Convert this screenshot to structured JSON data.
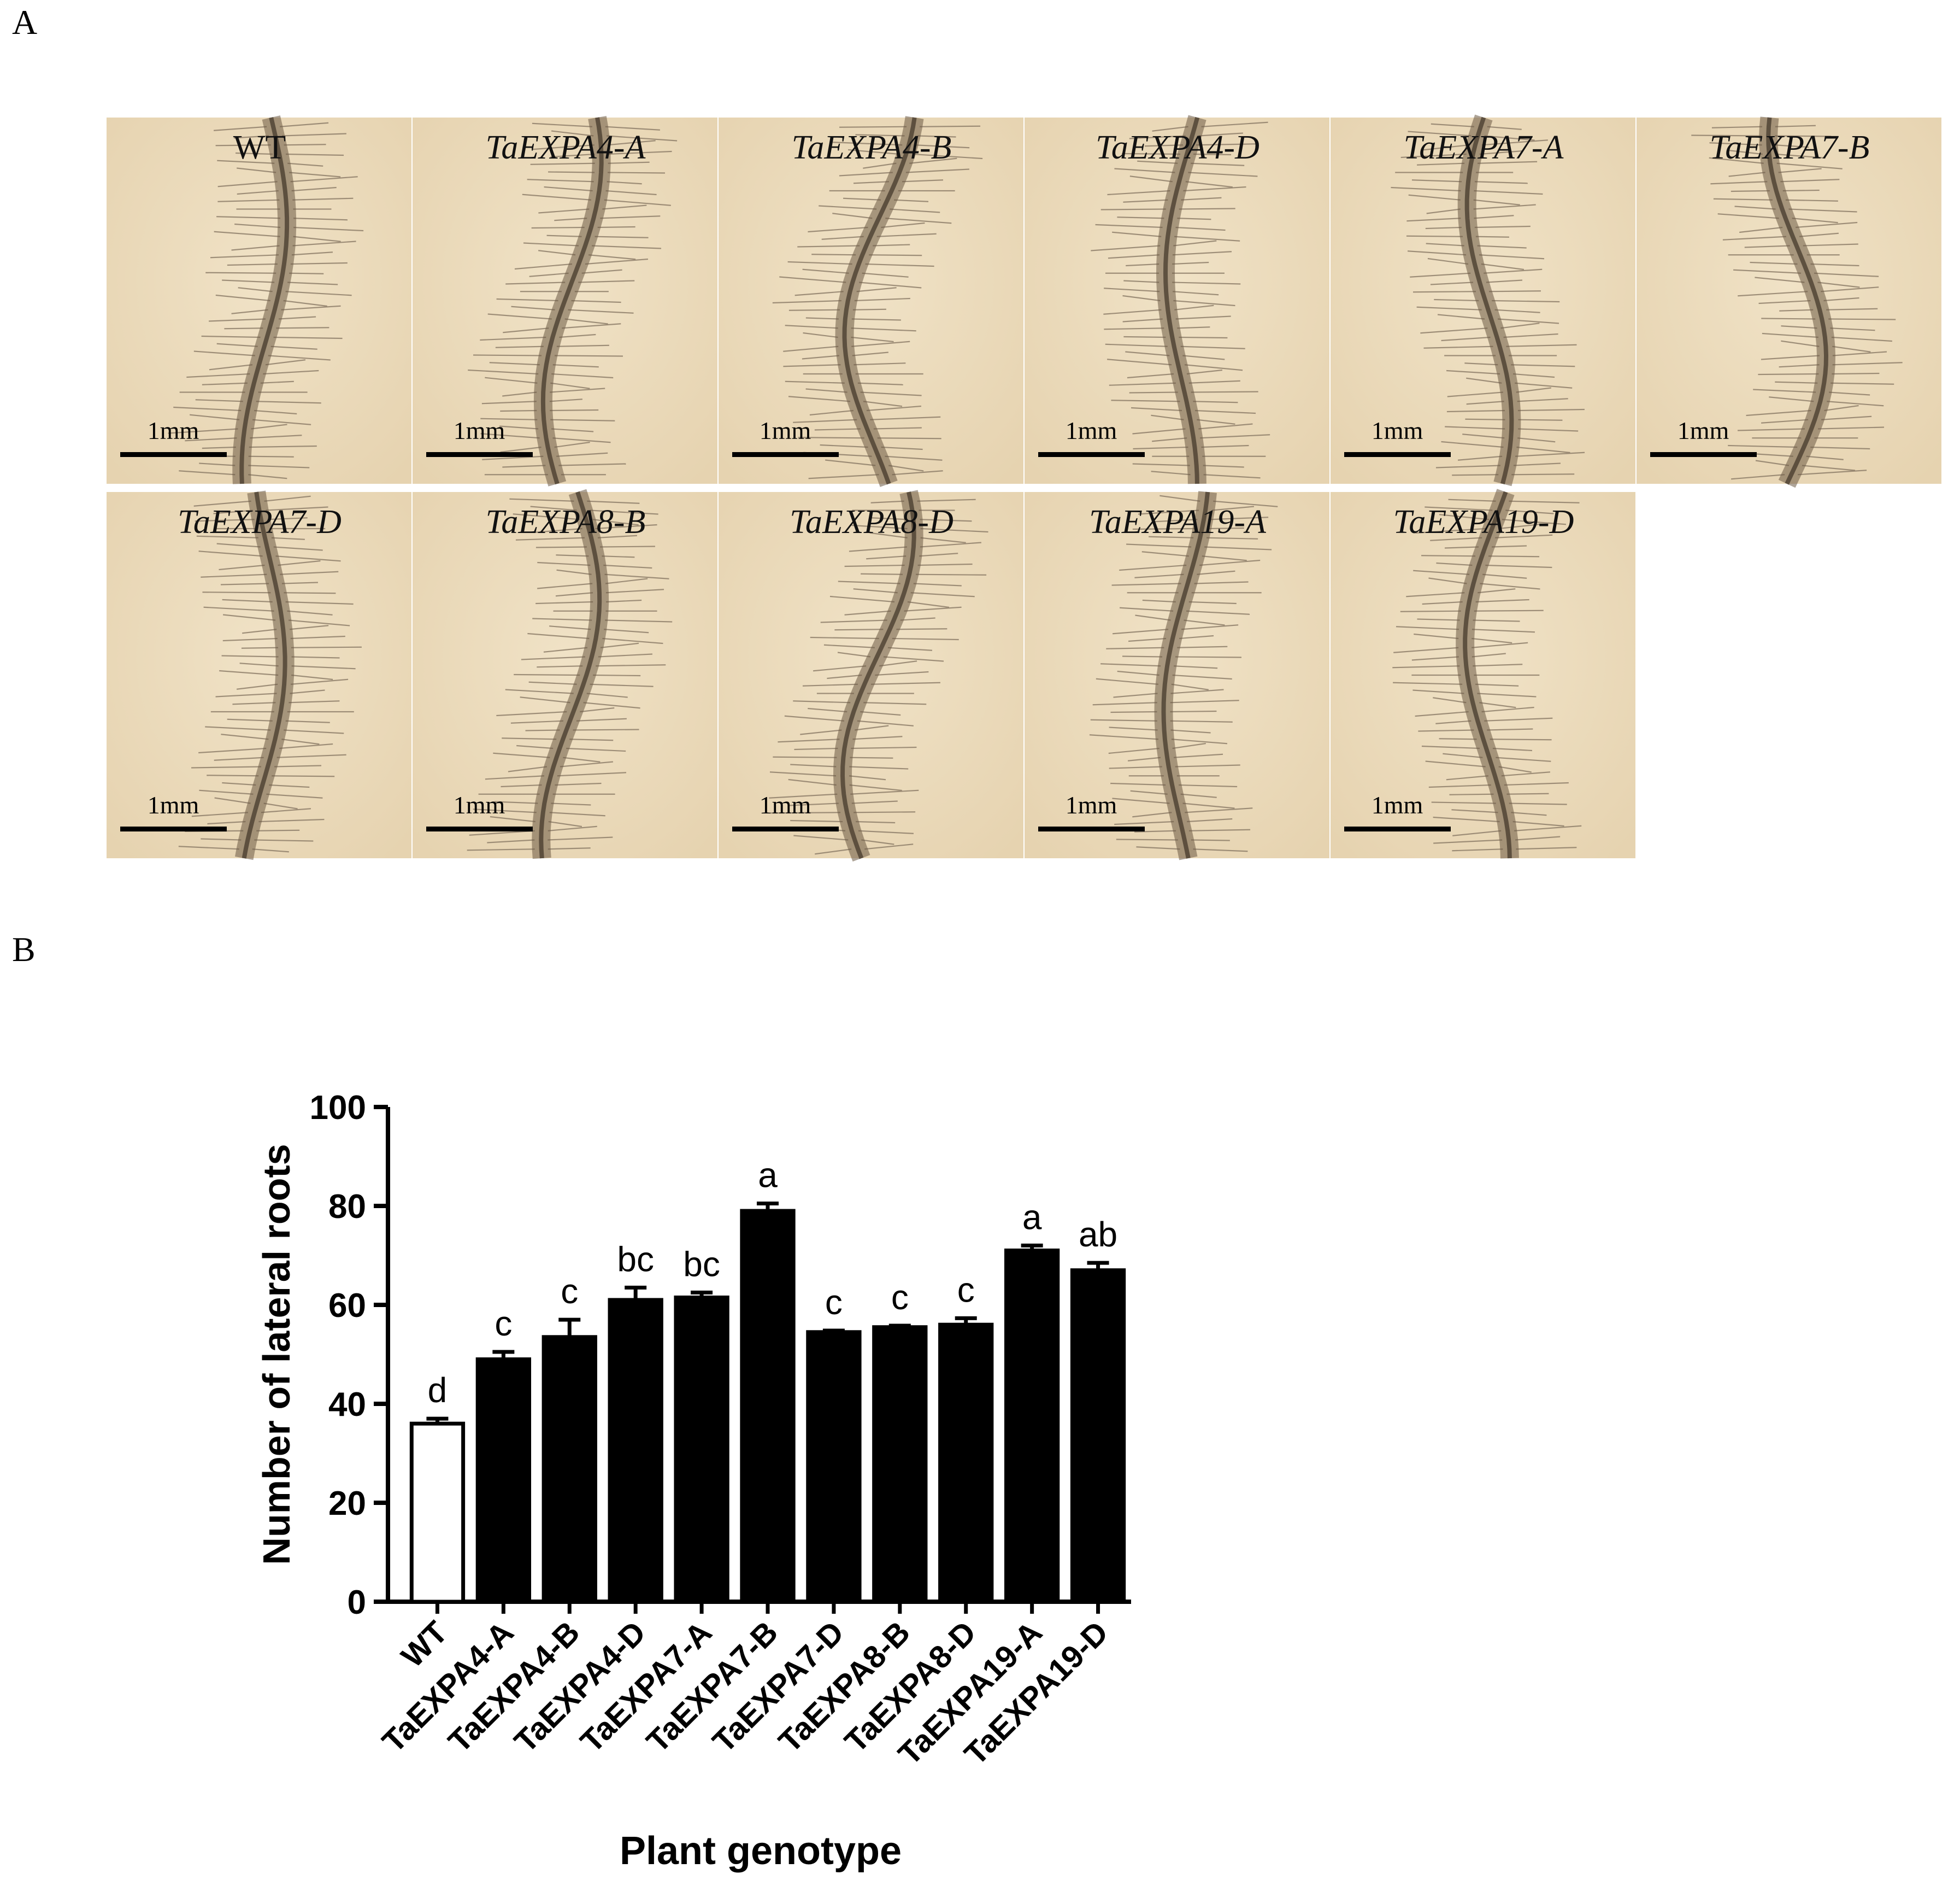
{
  "panel_a": {
    "letter": "A",
    "scale_bar_label": "1mm",
    "panels": [
      {
        "label": "WT",
        "italic": false,
        "row": 0,
        "col": 0
      },
      {
        "label": "TaEXPA4-A",
        "italic": true,
        "row": 0,
        "col": 1
      },
      {
        "label": "TaEXPA4-B",
        "italic": true,
        "row": 0,
        "col": 2
      },
      {
        "label": "TaEXPA4-D",
        "italic": true,
        "row": 0,
        "col": 3
      },
      {
        "label": "TaEXPA7-A",
        "italic": true,
        "row": 0,
        "col": 4
      },
      {
        "label": "TaEXPA7-B",
        "italic": true,
        "row": 0,
        "col": 5
      },
      {
        "label": "TaEXPA7-D",
        "italic": true,
        "row": 1,
        "col": 0
      },
      {
        "label": "TaEXPA8-B",
        "italic": true,
        "row": 1,
        "col": 1
      },
      {
        "label": "TaEXPA8-D",
        "italic": true,
        "row": 1,
        "col": 2
      },
      {
        "label": "TaEXPA19-A",
        "italic": true,
        "row": 1,
        "col": 3
      },
      {
        "label": "TaEXPA19-D",
        "italic": true,
        "row": 1,
        "col": 4
      }
    ],
    "colors": {
      "background": "#e6d3b0",
      "root": "#6b5a44",
      "hair": "#8a7a66"
    }
  },
  "panel_b": {
    "letter": "B",
    "chart_data": {
      "type": "bar",
      "categories": [
        "WT",
        "TaEXPA4-A",
        "TaEXPA4-B",
        "TaEXPA4-D",
        "TaEXPA7-A",
        "TaEXPA7-B",
        "TaEXPA7-D",
        "TaEXPA8-B",
        "TaEXPA8-D",
        "TaEXPA19-A",
        "TaEXPA19-D"
      ],
      "values": [
        36,
        49,
        53.5,
        61,
        61.5,
        79,
        54.5,
        55.5,
        56,
        71,
        67
      ],
      "errors": [
        1,
        1.5,
        3.5,
        2.5,
        1,
        1.5,
        0.3,
        0.3,
        1.3,
        1,
        1.5
      ],
      "significance_letters": [
        "d",
        "c",
        "c",
        "bc",
        "bc",
        "a",
        "c",
        "c",
        "c",
        "a",
        "ab"
      ],
      "bar_fill": [
        "#ffffff",
        "#000000",
        "#000000",
        "#000000",
        "#000000",
        "#000000",
        "#000000",
        "#000000",
        "#000000",
        "#000000",
        "#000000"
      ],
      "xlabel": "Plant genotype",
      "ylabel": "Number of lateral roots",
      "ylim": [
        0,
        100
      ],
      "yticks": [
        0,
        20,
        40,
        60,
        80,
        100
      ],
      "grid": false
    }
  }
}
